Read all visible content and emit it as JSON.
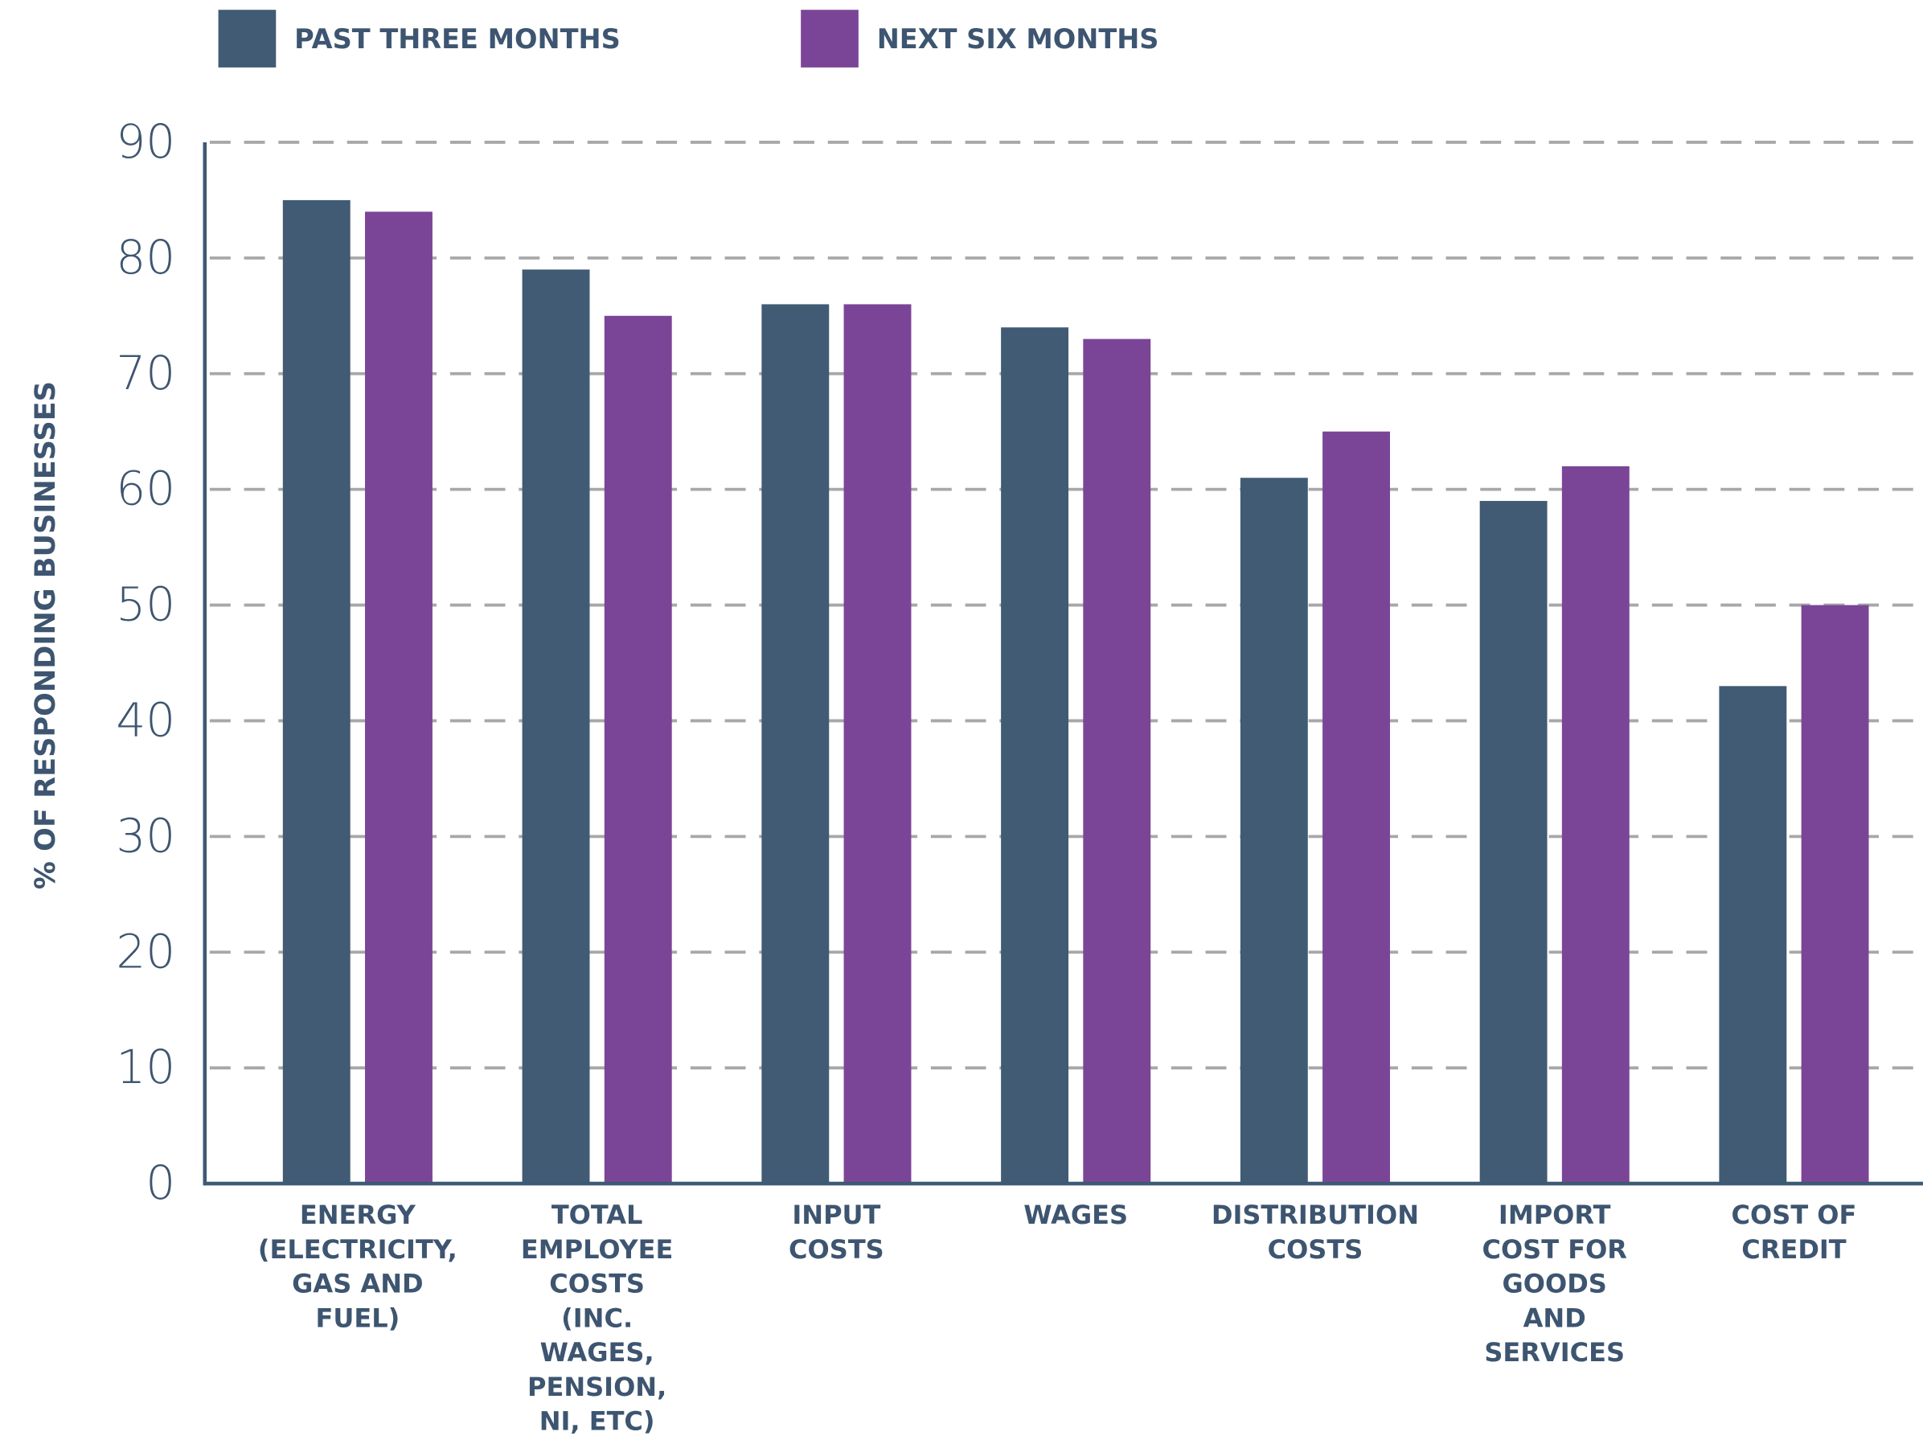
{
  "chart_data": {
    "type": "bar",
    "y_label": "% OF RESPONDING BUSINESSES",
    "categories": [
      [
        "ENERGY",
        "(ELECTRICITY,",
        "GAS AND",
        "FUEL)"
      ],
      [
        "TOTAL",
        "EMPLOYEE",
        "COSTS",
        "(INC.",
        "WAGES,",
        "PENSION,",
        "NI, ETC)"
      ],
      [
        "INPUT",
        "COSTS"
      ],
      [
        "WAGES"
      ],
      [
        "DISTRIBUTION",
        "COSTS"
      ],
      [
        "IMPORT",
        "COST FOR",
        "GOODS",
        "AND",
        "SERVICES"
      ],
      [
        "COST OF",
        "CREDIT"
      ]
    ],
    "series": [
      {
        "name": "PAST THREE MONTHS",
        "color": "#415b74",
        "values": [
          85,
          79,
          76,
          74,
          61,
          59,
          43
        ]
      },
      {
        "name": "NEXT SIX MONTHS",
        "color": "#7b4597",
        "values": [
          84,
          75,
          76,
          73,
          65,
          62,
          50
        ]
      }
    ],
    "ylim": [
      0,
      90
    ],
    "yticks": [
      0,
      10,
      20,
      30,
      40,
      50,
      60,
      70,
      80,
      90
    ],
    "grid": true
  }
}
